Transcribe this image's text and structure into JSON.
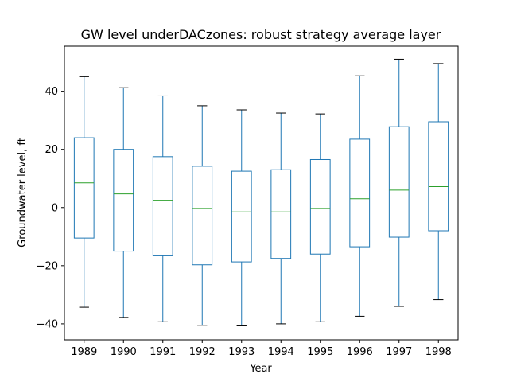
{
  "chart_data": {
    "type": "box",
    "title": "GW level underDACzones: robust strategy average layer",
    "xlabel": "Year",
    "ylabel": "Groundwater level, ft",
    "ylim": [
      -45.5,
      55.5
    ],
    "yticks": [
      -40,
      -20,
      0,
      20,
      40
    ],
    "grid": false,
    "legend": "none",
    "colors": {
      "box": "#1f77b4",
      "median": "#2ca02c",
      "cap": "#000000",
      "axes": "#000000"
    },
    "categories": [
      "1989",
      "1990",
      "1991",
      "1992",
      "1993",
      "1994",
      "1995",
      "1996",
      "1997",
      "1998"
    ],
    "boxes": [
      {
        "label": "1989",
        "whisker_low": -34.3,
        "q1": -10.5,
        "median": 8.5,
        "q3": 24.0,
        "whisker_high": 45.0
      },
      {
        "label": "1990",
        "whisker_low": -37.8,
        "q1": -15.0,
        "median": 4.7,
        "q3": 20.0,
        "whisker_high": 41.2
      },
      {
        "label": "1991",
        "whisker_low": -39.3,
        "q1": -16.6,
        "median": 2.5,
        "q3": 17.5,
        "whisker_high": 38.4
      },
      {
        "label": "1992",
        "whisker_low": -40.5,
        "q1": -19.7,
        "median": -0.3,
        "q3": 14.2,
        "whisker_high": 35.0
      },
      {
        "label": "1993",
        "whisker_low": -40.7,
        "q1": -18.7,
        "median": -1.5,
        "q3": 12.5,
        "whisker_high": 33.6
      },
      {
        "label": "1994",
        "whisker_low": -40.0,
        "q1": -17.5,
        "median": -1.5,
        "q3": 13.0,
        "whisker_high": 32.5
      },
      {
        "label": "1995",
        "whisker_low": -39.3,
        "q1": -16.0,
        "median": -0.3,
        "q3": 16.5,
        "whisker_high": 32.2
      },
      {
        "label": "1996",
        "whisker_low": -37.4,
        "q1": -13.5,
        "median": 3.0,
        "q3": 23.5,
        "whisker_high": 45.3
      },
      {
        "label": "1997",
        "whisker_low": -34.0,
        "q1": -10.2,
        "median": 6.0,
        "q3": 27.8,
        "whisker_high": 51.0
      },
      {
        "label": "1998",
        "whisker_low": -31.7,
        "q1": -8.0,
        "median": 7.2,
        "q3": 29.5,
        "whisker_high": 49.5
      }
    ]
  }
}
